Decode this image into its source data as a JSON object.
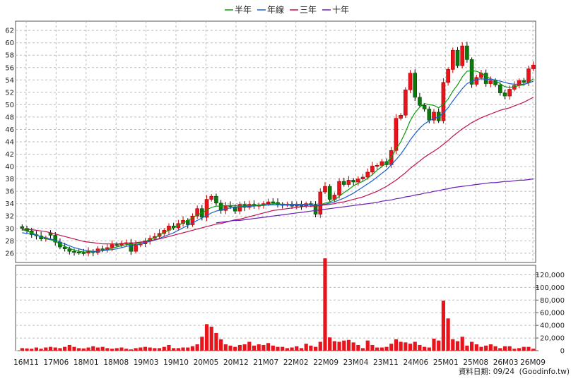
{
  "chart_data": {
    "type": "candlestick+bar",
    "legend": [
      {
        "label": "半年",
        "color": "#0b9a0b"
      },
      {
        "label": "年線",
        "color": "#1a5fd0"
      },
      {
        "label": "三年",
        "color": "#c0104a"
      },
      {
        "label": "十年",
        "color": "#6a1fb8"
      }
    ],
    "price_axis": {
      "ticks": [
        26,
        28,
        30,
        32,
        34,
        36,
        38,
        40,
        42,
        44,
        46,
        48,
        50,
        52,
        54,
        56,
        58,
        60,
        62
      ],
      "ylim": [
        24.5,
        63.5
      ],
      "position": "left"
    },
    "volume_axis": {
      "ticks": [
        "0",
        "20,000",
        "40,000",
        "60,000",
        "80,000",
        "100,000",
        "120,000"
      ],
      "ylim": [
        0,
        135000
      ],
      "position": "right"
    },
    "x_tick_labels": [
      "16M11",
      "17M06",
      "18M01",
      "18M08",
      "19M03",
      "19M10",
      "20M05",
      "20M12",
      "21M07",
      "22M02",
      "22M09",
      "23M04",
      "23M11",
      "24M06",
      "25M01",
      "25M08",
      "26M03",
      "26M09"
    ],
    "candles_close": [
      30.0,
      29.6,
      29.0,
      28.8,
      28.3,
      28.5,
      28.9,
      27.8,
      27.0,
      26.7,
      26.3,
      26.2,
      26.1,
      26.0,
      26.3,
      26.1,
      26.7,
      26.6,
      26.9,
      27.4,
      27.3,
      27.6,
      27.7,
      26.3,
      27.4,
      27.5,
      28.0,
      28.4,
      28.7,
      29.2,
      29.7,
      30.4,
      30.1,
      30.8,
      31.3,
      30.6,
      32.0,
      33.2,
      31.8,
      34.7,
      35.2,
      34.1,
      32.9,
      33.7,
      33.5,
      32.8,
      33.9,
      33.4,
      33.9,
      33.6,
      33.8,
      34.0,
      34.3,
      34.2,
      33.9,
      33.8,
      33.9,
      33.6,
      33.8,
      33.6,
      34.0,
      33.9,
      32.3,
      35.9,
      36.8,
      34.7,
      35.4,
      37.6,
      37.1,
      37.8,
      37.5,
      38.0,
      38.3,
      39.1,
      40.1,
      40.2,
      40.8,
      40.3,
      42.6,
      47.8,
      48.3,
      52.4,
      55.1,
      51.2,
      49.9,
      49.3,
      47.5,
      48.8,
      47.4,
      53.6,
      55.7,
      58.8,
      56.3,
      59.5,
      57.3,
      53.3,
      54.4,
      55.1,
      53.4,
      53.9,
      53.2,
      51.9,
      51.4,
      52.5,
      53.1,
      53.9,
      53.6,
      55.8,
      56.4
    ],
    "candles_up": [
      false,
      false,
      false,
      false,
      false,
      true,
      false,
      false,
      false,
      false,
      false,
      false,
      false,
      false,
      true,
      false,
      true,
      false,
      true,
      true,
      false,
      true,
      true,
      false,
      true,
      true,
      true,
      true,
      true,
      true,
      true,
      true,
      false,
      true,
      true,
      false,
      true,
      true,
      false,
      true,
      true,
      false,
      false,
      true,
      false,
      false,
      true,
      false,
      true,
      false,
      true,
      true,
      true,
      false,
      false,
      false,
      true,
      false,
      true,
      false,
      true,
      false,
      false,
      true,
      true,
      false,
      true,
      true,
      false,
      true,
      false,
      true,
      true,
      true,
      true,
      true,
      true,
      false,
      true,
      true,
      true,
      true,
      true,
      false,
      false,
      false,
      false,
      true,
      false,
      true,
      true,
      true,
      false,
      true,
      false,
      false,
      true,
      true,
      false,
      true,
      false,
      false,
      false,
      true,
      true,
      true,
      false,
      true,
      true
    ],
    "half_year_ma": [
      29.8,
      29.6,
      29.3,
      29.0,
      28.6,
      28.3,
      28.2,
      27.9,
      27.5,
      27.1,
      26.8,
      26.5,
      26.3,
      26.2,
      26.2,
      26.2,
      26.3,
      26.4,
      26.6,
      26.8,
      27.0,
      27.2,
      27.4,
      27.4,
      27.5,
      27.7,
      27.9,
      28.2,
      28.5,
      28.9,
      29.3,
      29.7,
      30.1,
      30.5,
      30.9,
      31.3,
      31.7,
      32.2,
      32.5,
      33.0,
      33.4,
      33.6,
      33.6,
      33.7,
      33.7,
      33.7,
      33.6,
      33.6,
      33.7,
      33.7,
      33.8,
      33.8,
      33.9,
      34.0,
      34.0,
      33.9,
      33.9,
      33.9,
      33.9,
      33.9,
      33.9,
      33.8,
      33.6,
      33.8,
      34.1,
      34.3,
      34.6,
      35.2,
      35.8,
      36.3,
      36.9,
      37.3,
      37.6,
      38.1,
      38.7,
      39.4,
      40.0,
      40.6,
      41.5,
      42.8,
      44.0,
      45.6,
      47.4,
      48.7,
      49.6,
      50.2,
      50.0,
      49.9,
      49.5,
      50.1,
      50.9,
      52.2,
      53.2,
      54.5,
      55.4,
      55.5,
      55.4,
      55.1,
      54.6,
      54.2,
      53.9,
      53.4,
      52.9,
      52.8,
      52.9,
      53.1,
      53.2,
      53.6,
      54.2
    ],
    "year_ma": [
      29.3,
      29.2,
      29.1,
      28.9,
      28.7,
      28.5,
      28.3,
      28.1,
      27.8,
      27.5,
      27.2,
      26.9,
      26.7,
      26.5,
      26.4,
      26.3,
      26.3,
      26.4,
      26.5,
      26.6,
      26.7,
      26.9,
      27.1,
      27.2,
      27.3,
      27.5,
      27.7,
      27.9,
      28.1,
      28.4,
      28.7,
      29.0,
      29.3,
      29.7,
      30.1,
      30.5,
      30.9,
      31.3,
      31.7,
      32.1,
      32.5,
      32.8,
      33.0,
      33.2,
      33.3,
      33.4,
      33.5,
      33.5,
      33.6,
      33.6,
      33.7,
      33.7,
      33.8,
      33.8,
      33.8,
      33.8,
      33.8,
      33.8,
      33.8,
      33.8,
      33.8,
      33.8,
      33.7,
      33.8,
      33.9,
      34.1,
      34.3,
      34.6,
      34.9,
      35.3,
      35.7,
      36.2,
      36.7,
      37.2,
      37.7,
      38.3,
      38.9,
      39.5,
      40.3,
      41.1,
      42.0,
      43.1,
      44.3,
      45.3,
      46.2,
      46.9,
      47.4,
      47.8,
      48.0,
      48.7,
      49.5,
      50.6,
      51.6,
      52.6,
      53.4,
      53.8,
      54.1,
      54.2,
      54.1,
      54.1,
      54.0,
      53.8,
      53.6,
      53.4,
      53.3,
      53.3,
      53.3,
      53.5,
      53.8
    ],
    "three_year_ma": [
      29.8,
      29.8,
      29.8,
      29.7,
      29.6,
      29.5,
      29.3,
      29.1,
      28.9,
      28.7,
      28.5,
      28.3,
      28.1,
      27.9,
      27.8,
      27.7,
      27.6,
      27.5,
      27.5,
      27.5,
      27.5,
      27.5,
      27.6,
      27.6,
      27.7,
      27.8,
      27.9,
      28.0,
      28.2,
      28.3,
      28.5,
      28.7,
      28.9,
      29.1,
      29.3,
      29.5,
      29.7,
      29.9,
      30.1,
      30.3,
      30.5,
      30.7,
      30.8,
      31.0,
      31.2,
      31.4,
      31.5,
      31.7,
      31.9,
      32.1,
      32.3,
      32.5,
      32.7,
      32.9,
      33.0,
      33.1,
      33.2,
      33.3,
      33.4,
      33.5,
      33.6,
      33.6,
      33.6,
      33.7,
      33.8,
      33.9,
      34.0,
      34.2,
      34.3,
      34.5,
      34.7,
      34.9,
      35.1,
      35.4,
      35.7,
      36.0,
      36.4,
      36.8,
      37.3,
      37.8,
      38.4,
      39.0,
      39.7,
      40.3,
      40.9,
      41.5,
      42.0,
      42.5,
      43.0,
      43.6,
      44.2,
      44.9,
      45.5,
      46.1,
      46.6,
      47.1,
      47.5,
      47.9,
      48.2,
      48.5,
      48.8,
      49.1,
      49.3,
      49.5,
      49.8,
      50.1,
      50.4,
      50.8,
      51.2
    ],
    "ten_year_ma_from_index": 41,
    "ten_year_ma": [
      30.9,
      31.0,
      31.1,
      31.2,
      31.3,
      31.3,
      31.4,
      31.5,
      31.6,
      31.7,
      31.8,
      31.9,
      32.0,
      32.1,
      32.2,
      32.3,
      32.4,
      32.5,
      32.6,
      32.7,
      32.8,
      32.9,
      33.0,
      33.1,
      33.2,
      33.3,
      33.4,
      33.5,
      33.6,
      33.7,
      33.8,
      33.9,
      34.0,
      34.1,
      34.2,
      34.4,
      34.5,
      34.6,
      34.8,
      34.9,
      35.1,
      35.2,
      35.4,
      35.5,
      35.7,
      35.8,
      36.0,
      36.1,
      36.3,
      36.4,
      36.6,
      36.7,
      36.8,
      36.9,
      37.0,
      37.1,
      37.2,
      37.3,
      37.4,
      37.4,
      37.5,
      37.6,
      37.6,
      37.7,
      37.8,
      37.8,
      37.9,
      38.0
    ],
    "volume": [
      4000,
      3500,
      3000,
      5000,
      3000,
      5000,
      6000,
      5000,
      4000,
      6000,
      9000,
      6000,
      4000,
      3500,
      5000,
      7000,
      5000,
      6000,
      4000,
      3000,
      4000,
      5000,
      3000,
      2000,
      4000,
      5000,
      6000,
      5000,
      4000,
      4000,
      6000,
      9000,
      4000,
      4000,
      5000,
      5000,
      7000,
      10000,
      22000,
      42000,
      38000,
      28000,
      18000,
      10000,
      8000,
      6000,
      9000,
      10000,
      14000,
      8000,
      10000,
      9000,
      12000,
      8000,
      6000,
      6000,
      4000,
      5000,
      7000,
      4000,
      11000,
      8000,
      6000,
      14000,
      146000,
      21000,
      15000,
      14000,
      16000,
      17000,
      13000,
      9000,
      4000,
      16000,
      9000,
      5000,
      5000,
      6000,
      11000,
      18000,
      14000,
      13000,
      11000,
      14000,
      9000,
      6000,
      5000,
      19000,
      16000,
      79000,
      51000,
      18000,
      15000,
      22000,
      8000,
      14000,
      10000,
      6000,
      8000,
      10000,
      7000,
      4000,
      7000,
      7000,
      3000,
      4000,
      6000,
      6000,
      3000
    ],
    "source": "資料日期: 09/24",
    "site": "(Goodinfo.tw)"
  }
}
